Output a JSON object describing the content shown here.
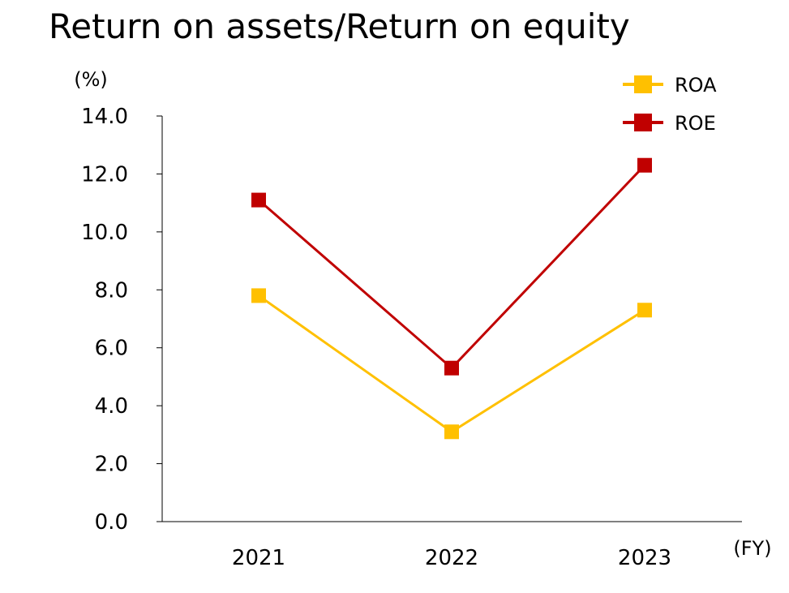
{
  "chart_data": {
    "type": "line",
    "title": "Return on assets/Return on equity",
    "ylabel": "(%)",
    "xlabel": "(FY)",
    "categories": [
      "2021",
      "2022",
      "2023"
    ],
    "ylim": [
      0,
      14
    ],
    "yticks": [
      "0.0",
      "2.0",
      "4.0",
      "6.0",
      "8.0",
      "10.0",
      "12.0",
      "14.0"
    ],
    "grid": false,
    "legend_position": "top-right",
    "series": [
      {
        "name": "ROA",
        "color": "#FFC000",
        "values": [
          7.8,
          3.1,
          7.3
        ]
      },
      {
        "name": "ROE",
        "color": "#C00000",
        "values": [
          11.1,
          5.3,
          12.3
        ]
      }
    ]
  }
}
